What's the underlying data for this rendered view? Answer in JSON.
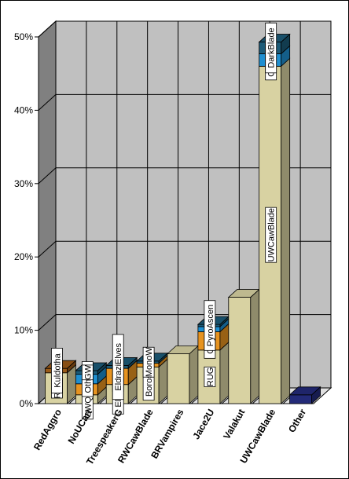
{
  "chart_data": {
    "type": "bar",
    "stacked": true,
    "three_d": true,
    "title": "",
    "xlabel": "",
    "ylabel": "",
    "ylim": [
      0,
      50
    ],
    "yticks": [
      "0%",
      "10%",
      "20%",
      "30%",
      "40%",
      "50%"
    ],
    "grid": true,
    "legend": "none",
    "categories": [
      "RedAggro",
      "NoUCart",
      "TreespeakerG",
      "RWCawBlade",
      "BRVampires",
      "Jace2U",
      "Valakut",
      "UWCawBlade",
      "Other"
    ],
    "colors": {
      "back_wall": "#c0c0c0",
      "side_wall": "#808080",
      "floor": "#e0e0e0",
      "tan": "#d8d2a2",
      "orange": "#e69320",
      "blue": "#1f8fd0",
      "teal": "#1c5b78",
      "brown": "#9a5a18",
      "navy": "#232a78"
    },
    "bars": [
      {
        "category": "RedAggro",
        "segments": [
          {
            "value": 4.2,
            "color": "tan",
            "label": "RDW"
          },
          {
            "value": 0.6,
            "color": "brown",
            "label": "Kuldotha"
          }
        ]
      },
      {
        "category": "NoUCart",
        "segments": [
          {
            "value": 1.2,
            "color": "tan",
            "label": "GWQuest"
          },
          {
            "value": 1.5,
            "color": "orange",
            "label": ""
          },
          {
            "value": 1.3,
            "color": "blue",
            "label": "OtherC"
          },
          {
            "value": 0.5,
            "color": "teal",
            "label": "GW"
          }
        ]
      },
      {
        "category": "TreespeakerG",
        "segments": [
          {
            "value": 2.6,
            "color": "tan",
            "label": "Eldrazi"
          },
          {
            "value": 2.2,
            "color": "orange",
            "label": "Elves"
          },
          {
            "value": 0.4,
            "color": "teal",
            "label": "EldraziElves"
          }
        ]
      },
      {
        "category": "RWCawBlade",
        "segments": [
          {
            "value": 5.0,
            "color": "tan",
            "label": "Boros"
          },
          {
            "value": 0.5,
            "color": "orange",
            "label": "RW"
          },
          {
            "value": 0.3,
            "color": "teal",
            "label": "MonoW"
          }
        ]
      },
      {
        "category": "BRVampires",
        "segments": [
          {
            "value": 6.8,
            "color": "tan",
            "label": ""
          }
        ]
      },
      {
        "category": "Jace2U",
        "segments": [
          {
            "value": 7.3,
            "color": "tan",
            "label": "RUG"
          },
          {
            "value": 2.5,
            "color": "orange",
            "label": "OtherJ"
          },
          {
            "value": 0.7,
            "color": "blue",
            "label": ""
          },
          {
            "value": 0.3,
            "color": "teal",
            "label": "PyroAscen"
          }
        ]
      },
      {
        "category": "Valakut",
        "segments": [
          {
            "value": 14.5,
            "color": "tan",
            "label": ""
          }
        ]
      },
      {
        "category": "UWCawBlade",
        "segments": [
          {
            "value": 46.0,
            "color": "tan",
            "label": "UWCawBlade"
          },
          {
            "value": 1.7,
            "color": "blue",
            "label": "OtherCB"
          },
          {
            "value": 1.6,
            "color": "teal",
            "label": "DarkBlade"
          }
        ]
      },
      {
        "category": "Other",
        "segments": [
          {
            "value": 1.2,
            "color": "navy",
            "label": ""
          }
        ]
      }
    ]
  }
}
